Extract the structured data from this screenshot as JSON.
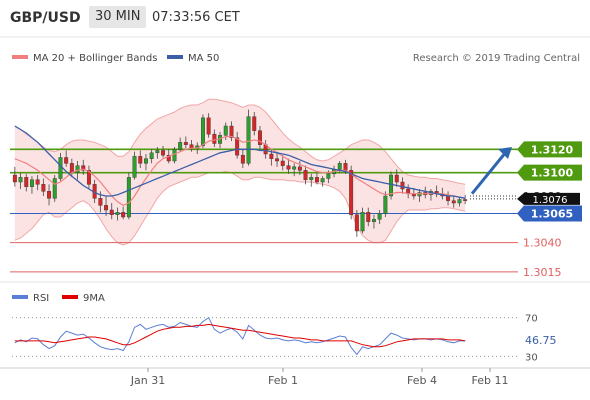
{
  "header": {
    "symbol": "GBP/USD",
    "timeframe": "30 MIN",
    "time": "07:33:56 CET"
  },
  "legend": {
    "items": [
      {
        "label": "MA 20 + Bollinger Bands",
        "color": "#f08080"
      },
      {
        "label": "MA 50",
        "color": "#3a5fa8"
      }
    ],
    "credit": "Research © 2019 Trading Central"
  },
  "rsi_legend": {
    "items": [
      {
        "label": "RSI",
        "color": "#5b7fd6"
      },
      {
        "label": "9MA",
        "color": "#e00000"
      }
    ]
  },
  "chart_data": {
    "type": "candlestick",
    "price_axis": {
      "levels": [
        {
          "value": 1.312,
          "label": "1.3120",
          "kind": "target",
          "color": "#4f9a0f"
        },
        {
          "value": 1.31,
          "label": "1.3100",
          "kind": "target",
          "color": "#4f9a0f"
        },
        {
          "value": 1.308,
          "label": "1.3080",
          "kind": "current",
          "color": "#222222"
        },
        {
          "value": 1.3065,
          "label": "1.3065",
          "kind": "pivot",
          "color": "#3060c0"
        },
        {
          "value": 1.304,
          "label": "1.3040",
          "kind": "support",
          "color": "#e06060"
        },
        {
          "value": 1.3015,
          "label": "1.3015",
          "kind": "support",
          "color": "#e06060"
        }
      ],
      "last_price_label": "1.3076",
      "ylim": [
        1.3008,
        1.3188
      ]
    },
    "x_labels": [
      "Jan 31",
      "Feb 1",
      "Feb 4",
      "Feb 11"
    ],
    "forecast_arrow": {
      "from": 1.3082,
      "to": 1.3122,
      "color": "#2e66b0"
    },
    "candles": [
      [
        1.3098,
        1.3105,
        1.3088,
        1.3092
      ],
      [
        1.3092,
        1.31,
        1.3086,
        1.3096
      ],
      [
        1.3096,
        1.3099,
        1.3084,
        1.3088
      ],
      [
        1.3088,
        1.3097,
        1.3082,
        1.3094
      ],
      [
        1.3094,
        1.3098,
        1.3085,
        1.309
      ],
      [
        1.309,
        1.3095,
        1.308,
        1.3084
      ],
      [
        1.3084,
        1.309,
        1.3072,
        1.3078
      ],
      [
        1.3078,
        1.3098,
        1.3075,
        1.3095
      ],
      [
        1.3095,
        1.3117,
        1.3093,
        1.3113
      ],
      [
        1.3113,
        1.3119,
        1.3105,
        1.3108
      ],
      [
        1.3108,
        1.3112,
        1.3096,
        1.31
      ],
      [
        1.31,
        1.311,
        1.3094,
        1.3106
      ],
      [
        1.3106,
        1.3111,
        1.3098,
        1.3102
      ],
      [
        1.3102,
        1.3106,
        1.3086,
        1.309
      ],
      [
        1.309,
        1.3094,
        1.3074,
        1.3078
      ],
      [
        1.3078,
        1.3084,
        1.3066,
        1.3072
      ],
      [
        1.3072,
        1.308,
        1.3063,
        1.3068
      ],
      [
        1.3068,
        1.3074,
        1.306,
        1.3064
      ],
      [
        1.3064,
        1.307,
        1.3059,
        1.3066
      ],
      [
        1.3066,
        1.3071,
        1.306,
        1.3062
      ],
      [
        1.3062,
        1.31,
        1.306,
        1.3096
      ],
      [
        1.3096,
        1.3118,
        1.3094,
        1.3114
      ],
      [
        1.3114,
        1.3119,
        1.3104,
        1.3108
      ],
      [
        1.3108,
        1.3116,
        1.3102,
        1.3112
      ],
      [
        1.3112,
        1.312,
        1.3108,
        1.3117
      ],
      [
        1.3117,
        1.3122,
        1.3112,
        1.3119
      ],
      [
        1.3119,
        1.3123,
        1.3113,
        1.3115
      ],
      [
        1.3115,
        1.312,
        1.3108,
        1.311
      ],
      [
        1.311,
        1.3122,
        1.3108,
        1.312
      ],
      [
        1.312,
        1.313,
        1.3118,
        1.3126
      ],
      [
        1.3126,
        1.3131,
        1.3121,
        1.3124
      ],
      [
        1.3124,
        1.3128,
        1.3118,
        1.3121
      ],
      [
        1.3121,
        1.3126,
        1.3116,
        1.3123
      ],
      [
        1.3123,
        1.315,
        1.3121,
        1.3147
      ],
      [
        1.3147,
        1.3151,
        1.313,
        1.3133
      ],
      [
        1.3133,
        1.3137,
        1.3122,
        1.3125
      ],
      [
        1.3125,
        1.3135,
        1.3121,
        1.3132
      ],
      [
        1.3132,
        1.3143,
        1.3128,
        1.314
      ],
      [
        1.314,
        1.3144,
        1.3127,
        1.313
      ],
      [
        1.313,
        1.3135,
        1.3112,
        1.3115
      ],
      [
        1.3115,
        1.312,
        1.3104,
        1.3108
      ],
      [
        1.3108,
        1.3154,
        1.3106,
        1.3148
      ],
      [
        1.3148,
        1.3152,
        1.3132,
        1.3136
      ],
      [
        1.3136,
        1.314,
        1.312,
        1.3124
      ],
      [
        1.3124,
        1.3128,
        1.3112,
        1.3116
      ],
      [
        1.3116,
        1.312,
        1.3106,
        1.3112
      ],
      [
        1.3112,
        1.3118,
        1.3105,
        1.311
      ],
      [
        1.311,
        1.3115,
        1.3102,
        1.3106
      ],
      [
        1.3106,
        1.3112,
        1.3099,
        1.3103
      ],
      [
        1.3103,
        1.3108,
        1.3097,
        1.3105
      ],
      [
        1.3105,
        1.311,
        1.3098,
        1.3102
      ],
      [
        1.3102,
        1.3106,
        1.309,
        1.3094
      ],
      [
        1.3094,
        1.3099,
        1.3088,
        1.3096
      ],
      [
        1.3096,
        1.31,
        1.309,
        1.3092
      ],
      [
        1.3092,
        1.3097,
        1.3088,
        1.3095
      ],
      [
        1.3095,
        1.3102,
        1.3091,
        1.3099
      ],
      [
        1.3099,
        1.3106,
        1.3096,
        1.3103
      ],
      [
        1.3103,
        1.311,
        1.31,
        1.3108
      ],
      [
        1.3108,
        1.3111,
        1.3099,
        1.3102
      ],
      [
        1.3102,
        1.3106,
        1.306,
        1.3064
      ],
      [
        1.3064,
        1.3068,
        1.3045,
        1.305
      ],
      [
        1.305,
        1.307,
        1.3048,
        1.3066
      ],
      [
        1.3066,
        1.307,
        1.3054,
        1.3058
      ],
      [
        1.3058,
        1.3064,
        1.3052,
        1.306
      ],
      [
        1.306,
        1.3068,
        1.3056,
        1.3065
      ],
      [
        1.3065,
        1.3084,
        1.3062,
        1.308
      ],
      [
        1.308,
        1.3101,
        1.3077,
        1.3098
      ],
      [
        1.3098,
        1.3103,
        1.3088,
        1.3092
      ],
      [
        1.3092,
        1.3096,
        1.3082,
        1.3086
      ],
      [
        1.3086,
        1.309,
        1.3078,
        1.3082
      ],
      [
        1.3082,
        1.3087,
        1.3077,
        1.308
      ],
      [
        1.308,
        1.3086,
        1.3075,
        1.3083
      ],
      [
        1.3083,
        1.3088,
        1.3078,
        1.3081
      ],
      [
        1.3081,
        1.3086,
        1.3076,
        1.3084
      ],
      [
        1.3084,
        1.3089,
        1.3079,
        1.3082
      ],
      [
        1.3082,
        1.3087,
        1.3077,
        1.308
      ],
      [
        1.308,
        1.3084,
        1.3072,
        1.3076
      ],
      [
        1.3076,
        1.308,
        1.307,
        1.3074
      ],
      [
        1.3074,
        1.3079,
        1.3071,
        1.3077
      ],
      [
        1.3077,
        1.3081,
        1.3073,
        1.3076
      ]
    ],
    "bollinger": {
      "mid": [
        1.3112,
        1.311,
        1.3108,
        1.3105,
        1.3102,
        1.3098,
        1.3094,
        1.309,
        1.3092,
        1.3096,
        1.31,
        1.3102,
        1.3103,
        1.3101,
        1.3097,
        1.3092,
        1.3086,
        1.308,
        1.3075,
        1.3072,
        1.3074,
        1.308,
        1.3088,
        1.3095,
        1.3102,
        1.3108,
        1.3112,
        1.3114,
        1.3116,
        1.3118,
        1.312,
        1.3121,
        1.3121,
        1.3124,
        1.3127,
        1.3128,
        1.3129,
        1.3131,
        1.3131,
        1.3129,
        1.3126,
        1.3127,
        1.3128,
        1.3127,
        1.3124,
        1.312,
        1.3117,
        1.3114,
        1.3111,
        1.3109,
        1.3107,
        1.3105,
        1.3103,
        1.3101,
        1.31,
        1.31,
        1.3101,
        1.3102,
        1.3102,
        1.3099,
        1.3095,
        1.3092,
        1.3089,
        1.3086,
        1.3083,
        1.3081,
        1.3082,
        1.3083,
        1.3083,
        1.3082,
        1.3082,
        1.3082,
        1.3082,
        1.3082,
        1.3082,
        1.3082,
        1.3081,
        1.308,
        1.3079,
        1.3078
      ],
      "upper": [
        1.314,
        1.3137,
        1.3133,
        1.313,
        1.3126,
        1.3122,
        1.3119,
        1.3118,
        1.312,
        1.3124,
        1.3127,
        1.3128,
        1.3128,
        1.3127,
        1.3126,
        1.3124,
        1.3122,
        1.3118,
        1.3114,
        1.3114,
        1.3118,
        1.3126,
        1.3133,
        1.3138,
        1.3142,
        1.3146,
        1.3148,
        1.315,
        1.3152,
        1.3155,
        1.3157,
        1.3158,
        1.3158,
        1.316,
        1.3163,
        1.3163,
        1.3162,
        1.3161,
        1.316,
        1.3158,
        1.3156,
        1.3158,
        1.3158,
        1.3156,
        1.3152,
        1.3146,
        1.314,
        1.3134,
        1.3129,
        1.3125,
        1.3122,
        1.3118,
        1.3114,
        1.3111,
        1.311,
        1.3111,
        1.3114,
        1.3117,
        1.312,
        1.3124,
        1.3126,
        1.3128,
        1.3128,
        1.3126,
        1.3123,
        1.3118,
        1.3112,
        1.3106,
        1.3101,
        1.3098,
        1.3097,
        1.3096,
        1.3096,
        1.3095,
        1.3095,
        1.3094,
        1.3093,
        1.3092,
        1.3091,
        1.309
      ],
      "lower": [
        1.3042,
        1.3044,
        1.3048,
        1.3052,
        1.3058,
        1.3064,
        1.3066,
        1.3062,
        1.3062,
        1.3066,
        1.307,
        1.3074,
        1.3076,
        1.3073,
        1.3067,
        1.306,
        1.3052,
        1.3045,
        1.304,
        1.3038,
        1.304,
        1.3046,
        1.3054,
        1.3062,
        1.307,
        1.3078,
        1.3084,
        1.3088,
        1.309,
        1.3092,
        1.3094,
        1.3096,
        1.3096,
        1.3098,
        1.31,
        1.31,
        1.31,
        1.3101,
        1.31,
        1.3097,
        1.3094,
        1.3094,
        1.3096,
        1.3096,
        1.3095,
        1.3094,
        1.3094,
        1.3094,
        1.3093,
        1.3093,
        1.3092,
        1.3092,
        1.3092,
        1.3091,
        1.309,
        1.3089,
        1.3087,
        1.3084,
        1.3078,
        1.3066,
        1.3054,
        1.3046,
        1.3042,
        1.304,
        1.304,
        1.3042,
        1.305,
        1.3058,
        1.3064,
        1.3068,
        1.3068,
        1.3068,
        1.3068,
        1.3069,
        1.3069,
        1.307,
        1.307,
        1.3069,
        1.3068,
        1.3067
      ]
    },
    "ma50": [
      1.314,
      1.3137,
      1.3134,
      1.313,
      1.3126,
      1.3121,
      1.3116,
      1.3111,
      1.3106,
      1.3101,
      1.3097,
      1.3093,
      1.3089,
      1.3086,
      1.3083,
      1.3081,
      1.308,
      1.308,
      1.3081,
      1.3083,
      1.3085,
      1.3087,
      1.3089,
      1.3091,
      1.3093,
      1.3095,
      1.3097,
      1.3099,
      1.3101,
      1.3103,
      1.3105,
      1.3107,
      1.3109,
      1.3111,
      1.3113,
      1.3115,
      1.3117,
      1.3118,
      1.3119,
      1.312,
      1.312,
      1.312,
      1.312,
      1.3119,
      1.3119,
      1.3118,
      1.3117,
      1.3116,
      1.3115,
      1.3113,
      1.3111,
      1.3109,
      1.3107,
      1.3106,
      1.3105,
      1.3104,
      1.3103,
      1.3102,
      1.3101,
      1.3099,
      1.3097,
      1.3095,
      1.3094,
      1.3093,
      1.3092,
      1.3091,
      1.309,
      1.3089,
      1.3088,
      1.3087,
      1.3086,
      1.3085,
      1.3084,
      1.3083,
      1.3082,
      1.3081,
      1.308,
      1.308,
      1.3079,
      1.3078
    ],
    "rsi": {
      "levels": [
        70,
        30
      ],
      "ylim": [
        20,
        80
      ],
      "current_label": "46.75",
      "rsi": [
        44,
        47,
        45,
        49,
        48,
        42,
        38,
        41,
        50,
        56,
        54,
        52,
        53,
        49,
        44,
        40,
        38,
        37,
        38,
        36,
        45,
        60,
        63,
        58,
        60,
        62,
        63,
        60,
        61,
        65,
        63,
        61,
        60,
        66,
        70,
        58,
        54,
        57,
        59,
        55,
        48,
        62,
        57,
        52,
        49,
        48,
        49,
        47,
        46,
        47,
        46,
        44,
        45,
        44,
        45,
        47,
        49,
        51,
        50,
        39,
        32,
        40,
        38,
        40,
        42,
        48,
        54,
        52,
        49,
        48,
        47,
        48,
        48,
        47,
        48,
        47,
        45,
        44,
        46,
        46
      ],
      "ma9": [
        46,
        46,
        46,
        46,
        46,
        46,
        45,
        44,
        45,
        46,
        47,
        48,
        49,
        50,
        50,
        49,
        48,
        46,
        44,
        42,
        42,
        44,
        47,
        50,
        53,
        56,
        58,
        59,
        60,
        60,
        61,
        61,
        62,
        62,
        63,
        62,
        61,
        60,
        59,
        58,
        57,
        57,
        56,
        55,
        54,
        53,
        52,
        51,
        50,
        49,
        49,
        48,
        47,
        47,
        46,
        46,
        46,
        46,
        46,
        46,
        44,
        42,
        41,
        40,
        40,
        41,
        43,
        45,
        46,
        47,
        48,
        48,
        48,
        48,
        48,
        48,
        47,
        47,
        47,
        46
      ]
    }
  }
}
